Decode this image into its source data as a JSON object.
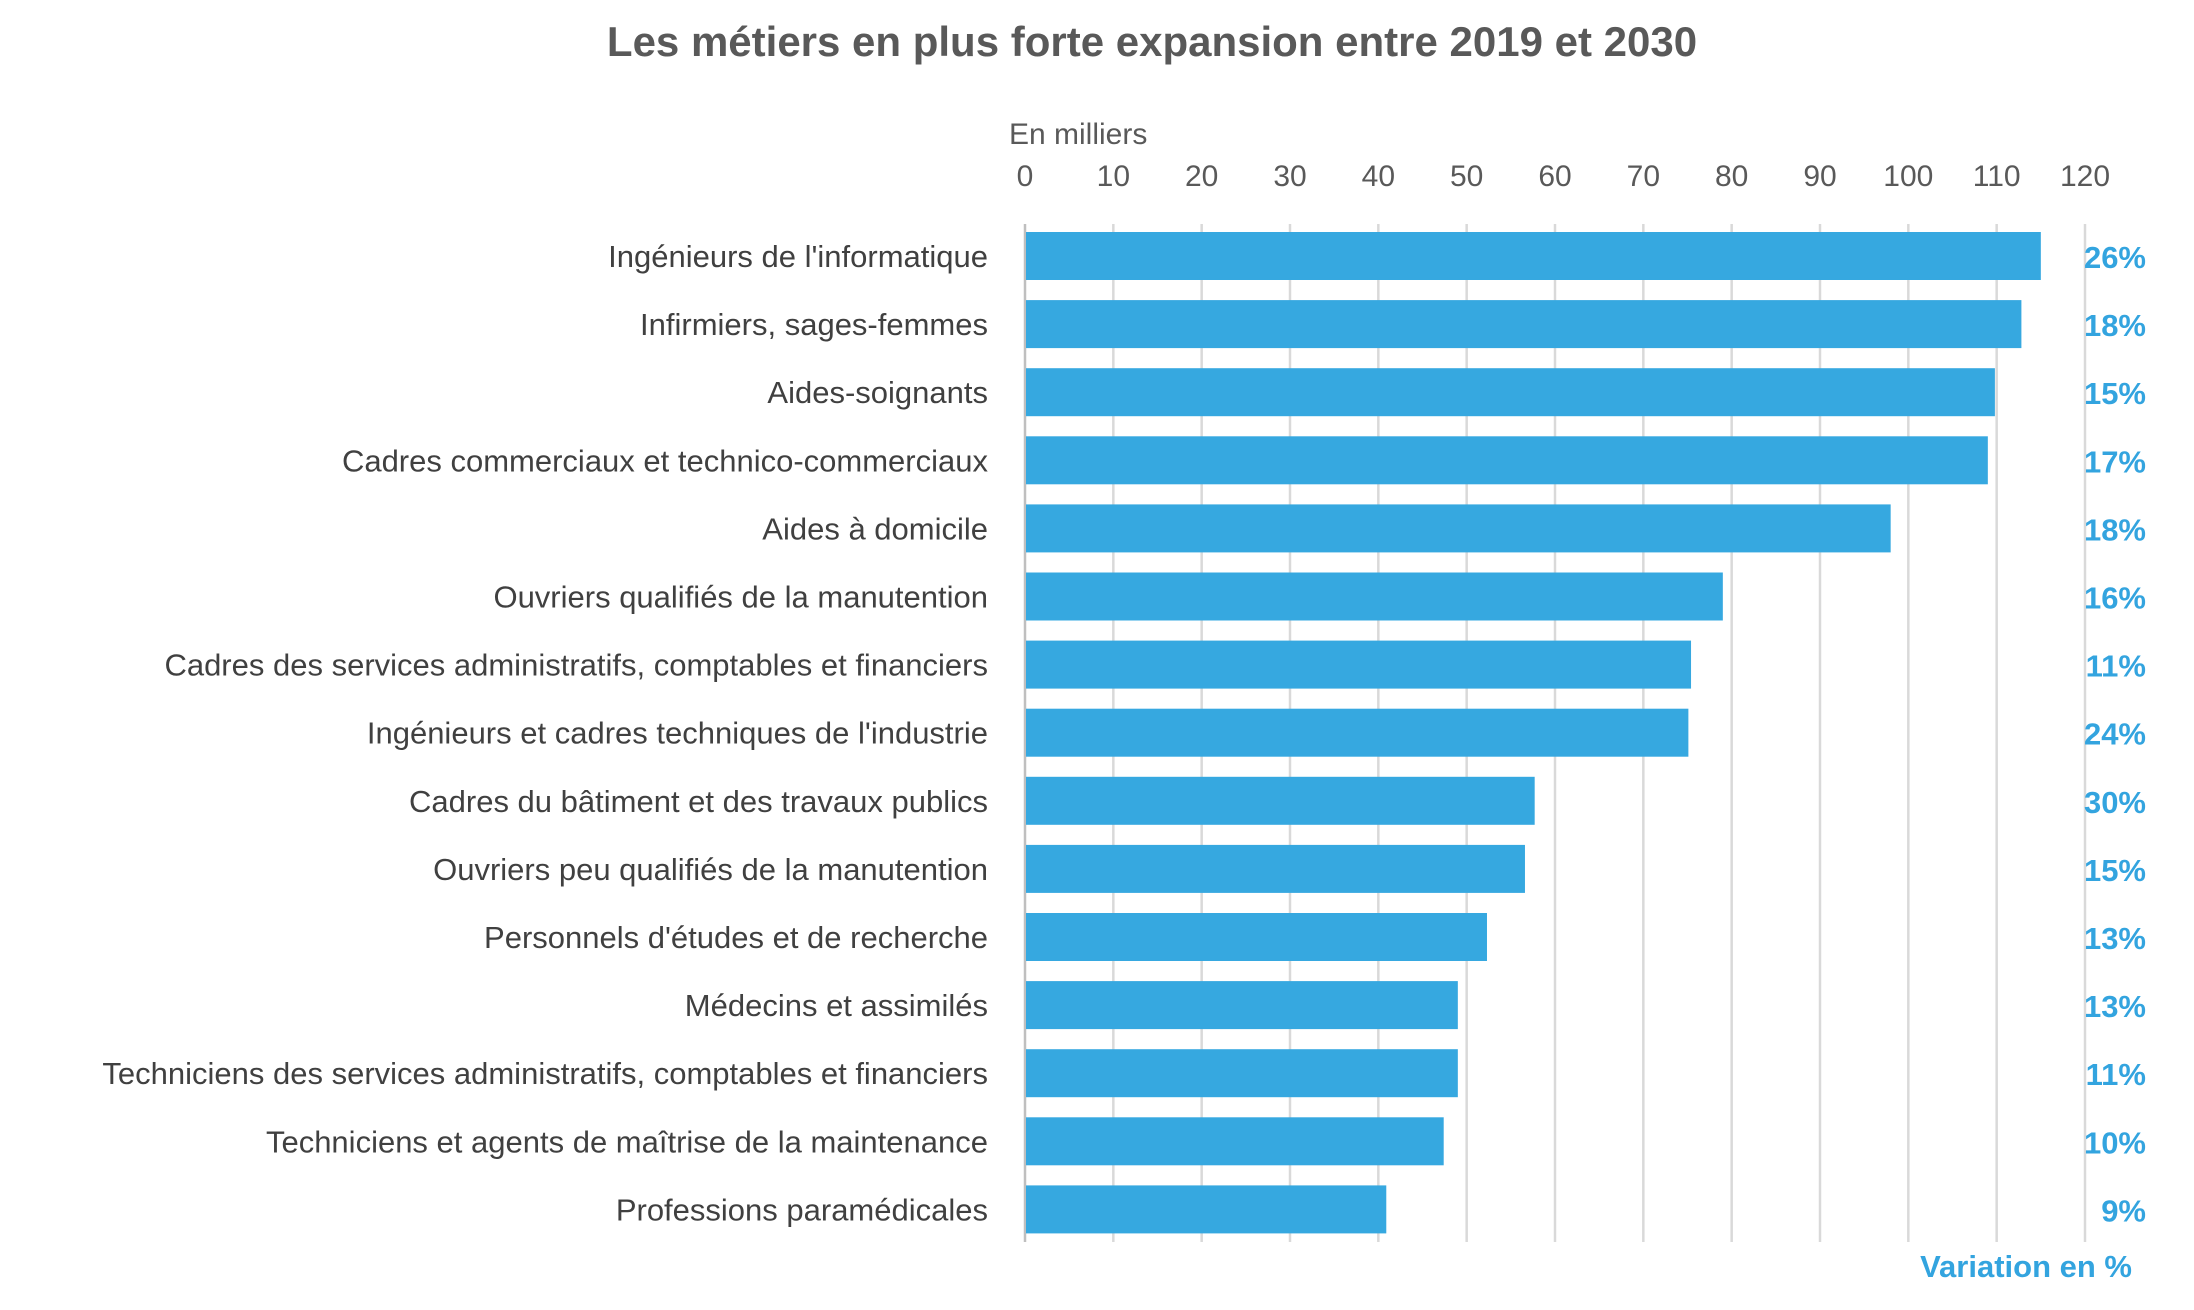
{
  "chart_data": {
    "type": "bar",
    "orientation": "horizontal",
    "title": "Les métiers en plus forte expansion entre 2019 et 2030",
    "xlabel": "En milliers",
    "secondary_label": "Variation en %",
    "xlim": [
      0,
      120
    ],
    "xticks": [
      "0",
      "10",
      "20",
      "30",
      "40",
      "50",
      "60",
      "70",
      "80",
      "90",
      "100",
      "110",
      "120"
    ],
    "grid": true,
    "bar_color": "#36a8e0",
    "pct_color": "#33a4df",
    "categories": [
      "Ingénieurs de l'informatique",
      "Infirmiers, sages-femmes",
      "Aides-soignants",
      "Cadres commerciaux et technico-commerciaux",
      "Aides à domicile",
      "Ouvriers qualifiés de la manutention",
      "Cadres des services administratifs, comptables et financiers",
      "Ingénieurs et cadres techniques de l'industrie",
      "Cadres du bâtiment et des travaux publics",
      "Ouvriers peu qualifiés de la manutention",
      "Personnels d'études et de recherche",
      "Médecins et assimilés",
      "Techniciens des services administratifs, comptables et financiers",
      "Techniciens et agents de maîtrise de la maintenance",
      "Professions paramédicales"
    ],
    "values": [
      115,
      112.8,
      109.8,
      109,
      98,
      79,
      75.4,
      75.1,
      57.7,
      56.6,
      52.3,
      49,
      49,
      47.4,
      40.9
    ],
    "variation_labels": [
      "26%",
      "18%",
      "15%",
      "17%",
      "18%",
      "16%",
      "11%",
      "24%",
      "30%",
      "15%",
      "13%",
      "13%",
      "11%",
      "10%",
      "9%"
    ]
  }
}
